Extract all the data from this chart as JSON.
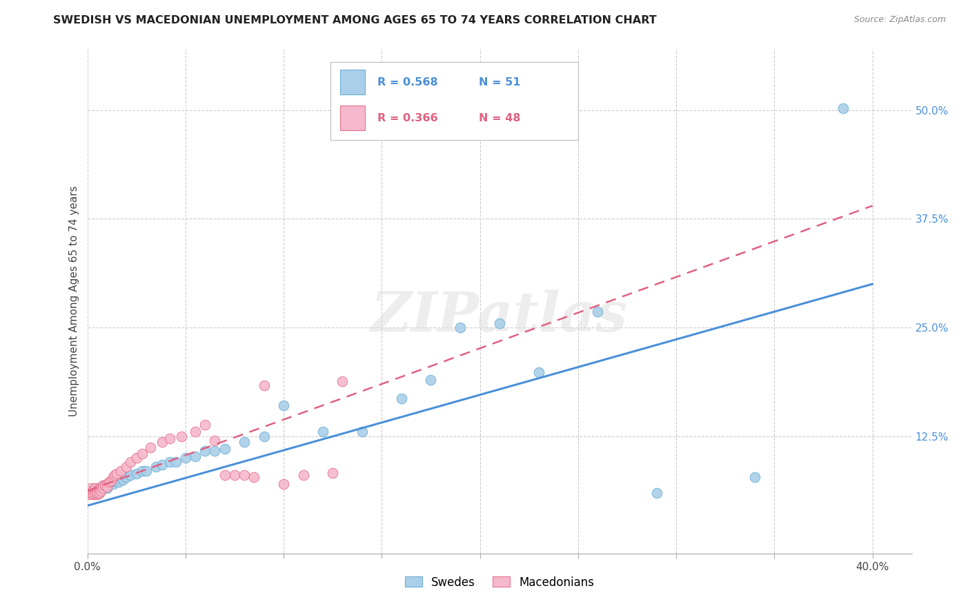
{
  "title": "SWEDISH VS MACEDONIAN UNEMPLOYMENT AMONG AGES 65 TO 74 YEARS CORRELATION CHART",
  "source": "Source: ZipAtlas.com",
  "ylabel": "Unemployment Among Ages 65 to 74 years",
  "xlim": [
    0.0,
    0.42
  ],
  "ylim": [
    -0.01,
    0.57
  ],
  "blue_R": 0.568,
  "blue_N": 51,
  "pink_R": 0.366,
  "pink_N": 48,
  "blue_color": "#aacfe8",
  "pink_color": "#f5b8cc",
  "blue_edge_color": "#6aaed6",
  "pink_edge_color": "#e8708a",
  "blue_line_color": "#4a90d9",
  "pink_line_color": "#e06080",
  "watermark": "ZIPatlas",
  "background_color": "#ffffff",
  "grid_color": "#cccccc",
  "blue_x": [
    0.001,
    0.002,
    0.003,
    0.003,
    0.004,
    0.004,
    0.005,
    0.005,
    0.006,
    0.006,
    0.007,
    0.007,
    0.008,
    0.009,
    0.01,
    0.01,
    0.011,
    0.012,
    0.013,
    0.014,
    0.015,
    0.016,
    0.018,
    0.02,
    0.022,
    0.025,
    0.028,
    0.03,
    0.035,
    0.038,
    0.042,
    0.045,
    0.05,
    0.055,
    0.06,
    0.065,
    0.07,
    0.08,
    0.09,
    0.1,
    0.12,
    0.14,
    0.16,
    0.175,
    0.19,
    0.21,
    0.23,
    0.26,
    0.29,
    0.34,
    0.385
  ],
  "blue_y": [
    0.062,
    0.06,
    0.063,
    0.058,
    0.065,
    0.06,
    0.063,
    0.058,
    0.065,
    0.06,
    0.063,
    0.065,
    0.068,
    0.066,
    0.068,
    0.065,
    0.07,
    0.072,
    0.07,
    0.073,
    0.075,
    0.072,
    0.075,
    0.078,
    0.08,
    0.082,
    0.085,
    0.085,
    0.09,
    0.092,
    0.095,
    0.095,
    0.1,
    0.102,
    0.108,
    0.108,
    0.11,
    0.118,
    0.125,
    0.16,
    0.13,
    0.13,
    0.168,
    0.19,
    0.25,
    0.255,
    0.198,
    0.268,
    0.06,
    0.078,
    0.502
  ],
  "pink_x": [
    0.001,
    0.001,
    0.002,
    0.002,
    0.003,
    0.003,
    0.003,
    0.004,
    0.004,
    0.004,
    0.005,
    0.005,
    0.005,
    0.006,
    0.006,
    0.007,
    0.007,
    0.008,
    0.008,
    0.009,
    0.01,
    0.01,
    0.011,
    0.012,
    0.013,
    0.014,
    0.015,
    0.017,
    0.02,
    0.022,
    0.025,
    0.028,
    0.032,
    0.038,
    0.042,
    0.048,
    0.055,
    0.06,
    0.065,
    0.07,
    0.075,
    0.08,
    0.085,
    0.09,
    0.1,
    0.11,
    0.125,
    0.13
  ],
  "pink_y": [
    0.06,
    0.058,
    0.065,
    0.06,
    0.063,
    0.06,
    0.058,
    0.065,
    0.06,
    0.058,
    0.063,
    0.058,
    0.06,
    0.065,
    0.06,
    0.065,
    0.062,
    0.068,
    0.065,
    0.068,
    0.07,
    0.067,
    0.072,
    0.074,
    0.078,
    0.08,
    0.082,
    0.085,
    0.09,
    0.095,
    0.1,
    0.105,
    0.112,
    0.118,
    0.122,
    0.125,
    0.13,
    0.138,
    0.12,
    0.08,
    0.08,
    0.08,
    0.078,
    0.183,
    0.07,
    0.08,
    0.083,
    0.188
  ],
  "blue_trend_x": [
    0.0,
    0.4
  ],
  "blue_trend_y": [
    0.045,
    0.3
  ],
  "pink_trend_x": [
    0.0,
    0.4
  ],
  "pink_trend_y": [
    0.062,
    0.39
  ]
}
